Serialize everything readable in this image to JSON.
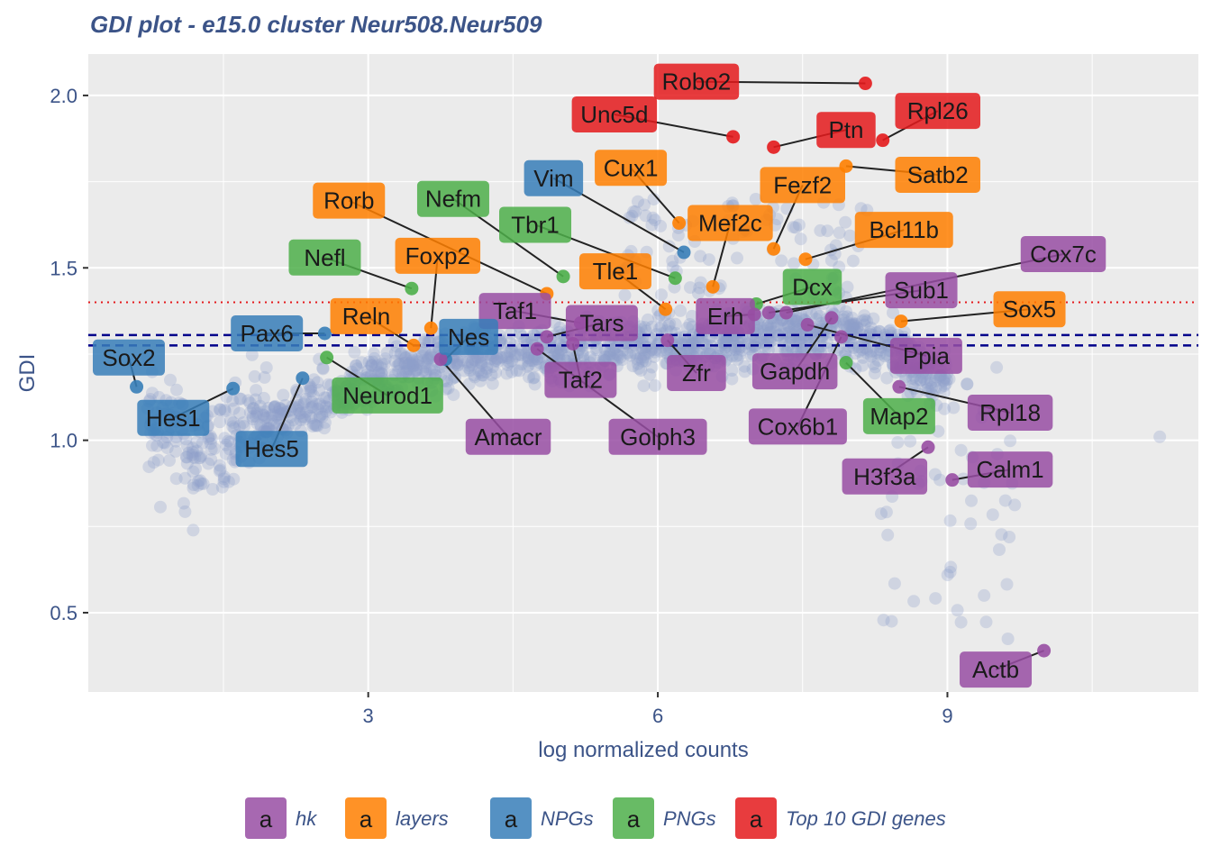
{
  "chart_data": {
    "type": "scatter",
    "title": "GDI plot - e15.0 cluster Neur508.Neur509",
    "xlabel": "log normalized counts",
    "ylabel": "GDI",
    "xlim": [
      0.1,
      11.6
    ],
    "ylim": [
      0.27,
      2.12
    ],
    "x_ticks": [
      3,
      6,
      9
    ],
    "y_ticks": [
      0.5,
      1.0,
      1.5,
      2.0
    ],
    "x_tick_labels": [
      "3",
      "6",
      "9"
    ],
    "y_tick_labels": [
      "0.5",
      "1.0",
      "1.5",
      "2.0"
    ],
    "grid": true,
    "legend_position": "bottom",
    "reference_lines": [
      {
        "y": 1.4,
        "style": "dotted",
        "color": "#e41a1c"
      },
      {
        "y": 1.305,
        "style": "dashed",
        "color": "#00008b"
      },
      {
        "y": 1.275,
        "style": "dashed",
        "color": "#00008b"
      }
    ],
    "legend": [
      {
        "key": "hk",
        "label": "hk",
        "color": "#984ea3"
      },
      {
        "key": "layers",
        "label": "layers",
        "color": "#ff7f00"
      },
      {
        "key": "NPGs",
        "label": "NPGs",
        "color": "#377eb8"
      },
      {
        "key": "PNGs",
        "label": "PNGs",
        "color": "#4daf4a"
      },
      {
        "key": "top10",
        "label": "Top 10 GDI genes",
        "color": "#e41a1c"
      }
    ],
    "legend_glyph": "a",
    "background_color": "#8da0cb",
    "labeled_points": [
      {
        "gene": "Robo2",
        "group": "top10",
        "x": 8.15,
        "y": 2.035,
        "lx": 6.4,
        "ly": 2.04
      },
      {
        "gene": "Unc5d",
        "group": "top10",
        "x": 6.78,
        "y": 1.88,
        "lx": 5.55,
        "ly": 1.945
      },
      {
        "gene": "Ptn",
        "group": "top10",
        "x": 7.2,
        "y": 1.85,
        "lx": 7.95,
        "ly": 1.9
      },
      {
        "gene": "Rpl26",
        "group": "top10",
        "x": 8.33,
        "y": 1.87,
        "lx": 8.9,
        "ly": 1.955
      },
      {
        "gene": "Satb2",
        "group": "layers",
        "x": 7.95,
        "y": 1.795,
        "lx": 8.9,
        "ly": 1.77
      },
      {
        "gene": "Cux1",
        "group": "layers",
        "x": 6.22,
        "y": 1.63,
        "lx": 5.72,
        "ly": 1.79
      },
      {
        "gene": "Fezf2",
        "group": "layers",
        "x": 7.2,
        "y": 1.555,
        "lx": 7.5,
        "ly": 1.74
      },
      {
        "gene": "Mef2c",
        "group": "layers",
        "x": 6.57,
        "y": 1.445,
        "lx": 6.75,
        "ly": 1.63
      },
      {
        "gene": "Bcl11b",
        "group": "layers",
        "x": 7.53,
        "y": 1.525,
        "lx": 8.55,
        "ly": 1.61
      },
      {
        "gene": "Vim",
        "group": "NPGs",
        "x": 6.27,
        "y": 1.545,
        "lx": 4.92,
        "ly": 1.76
      },
      {
        "gene": "Rorb",
        "group": "layers",
        "x": 4.85,
        "y": 1.425,
        "lx": 2.8,
        "ly": 1.695
      },
      {
        "gene": "Nefm",
        "group": "PNGs",
        "x": 5.02,
        "y": 1.475,
        "lx": 3.88,
        "ly": 1.7
      },
      {
        "gene": "Tbr1",
        "group": "PNGs",
        "x": 6.18,
        "y": 1.47,
        "lx": 4.73,
        "ly": 1.625
      },
      {
        "gene": "Nefl",
        "group": "PNGs",
        "x": 3.45,
        "y": 1.44,
        "lx": 2.55,
        "ly": 1.53
      },
      {
        "gene": "Foxp2",
        "group": "layers",
        "x": 3.65,
        "y": 1.325,
        "lx": 3.72,
        "ly": 1.535
      },
      {
        "gene": "Tle1",
        "group": "layers",
        "x": 6.08,
        "y": 1.38,
        "lx": 5.56,
        "ly": 1.49
      },
      {
        "gene": "Dcx",
        "group": "PNGs",
        "x": 7.02,
        "y": 1.395,
        "lx": 7.6,
        "ly": 1.445
      },
      {
        "gene": "Cox7c",
        "group": "hk",
        "x": 7.33,
        "y": 1.37,
        "lx": 10.2,
        "ly": 1.54
      },
      {
        "gene": "Sub1",
        "group": "hk",
        "x": 7.15,
        "y": 1.37,
        "lx": 8.73,
        "ly": 1.435
      },
      {
        "gene": "Sox5",
        "group": "layers",
        "x": 8.52,
        "y": 1.345,
        "lx": 9.85,
        "ly": 1.38
      },
      {
        "gene": "Taf1",
        "group": "hk",
        "x": 5.2,
        "y": 1.34,
        "lx": 4.52,
        "ly": 1.375
      },
      {
        "gene": "Reln",
        "group": "layers",
        "x": 3.47,
        "y": 1.275,
        "lx": 2.98,
        "ly": 1.36
      },
      {
        "gene": "Erh",
        "group": "hk",
        "x": 7.0,
        "y": 1.365,
        "lx": 6.7,
        "ly": 1.36
      },
      {
        "gene": "Tars",
        "group": "hk",
        "x": 4.85,
        "y": 1.3,
        "lx": 5.42,
        "ly": 1.34
      },
      {
        "gene": "Pax6",
        "group": "NPGs",
        "x": 2.55,
        "y": 1.31,
        "lx": 1.95,
        "ly": 1.31
      },
      {
        "gene": "Nes",
        "group": "NPGs",
        "x": 3.8,
        "y": 1.235,
        "lx": 4.04,
        "ly": 1.3
      },
      {
        "gene": "Sox2",
        "group": "NPGs",
        "x": 0.6,
        "y": 1.155,
        "lx": 0.52,
        "ly": 1.24
      },
      {
        "gene": "Neurod1",
        "group": "PNGs",
        "x": 2.57,
        "y": 1.24,
        "lx": 3.2,
        "ly": 1.13
      },
      {
        "gene": "Ppia",
        "group": "hk",
        "x": 7.55,
        "y": 1.335,
        "lx": 8.78,
        "ly": 1.245
      },
      {
        "gene": "Gapdh",
        "group": "hk",
        "x": 7.8,
        "y": 1.355,
        "lx": 7.42,
        "ly": 1.2
      },
      {
        "gene": "Zfr",
        "group": "hk",
        "x": 6.1,
        "y": 1.29,
        "lx": 6.4,
        "ly": 1.195
      },
      {
        "gene": "Taf2",
        "group": "hk",
        "x": 5.12,
        "y": 1.28,
        "lx": 5.2,
        "ly": 1.175
      },
      {
        "gene": "Hes1",
        "group": "NPGs",
        "x": 1.6,
        "y": 1.15,
        "lx": 0.98,
        "ly": 1.065
      },
      {
        "gene": "Rpl18",
        "group": "hk",
        "x": 8.5,
        "y": 1.155,
        "lx": 9.65,
        "ly": 1.08
      },
      {
        "gene": "Map2",
        "group": "PNGs",
        "x": 7.95,
        "y": 1.225,
        "lx": 8.5,
        "ly": 1.07
      },
      {
        "gene": "Amacr",
        "group": "hk",
        "x": 3.75,
        "y": 1.235,
        "lx": 4.45,
        "ly": 1.01
      },
      {
        "gene": "Golph3",
        "group": "hk",
        "x": 4.75,
        "y": 1.265,
        "lx": 6.0,
        "ly": 1.01
      },
      {
        "gene": "Cox6b1",
        "group": "hk",
        "x": 7.9,
        "y": 1.3,
        "lx": 7.45,
        "ly": 1.04
      },
      {
        "gene": "Hes5",
        "group": "NPGs",
        "x": 2.32,
        "y": 1.18,
        "lx": 2.0,
        "ly": 0.975
      },
      {
        "gene": "H3f3a",
        "group": "hk",
        "x": 8.8,
        "y": 0.98,
        "lx": 8.35,
        "ly": 0.895
      },
      {
        "gene": "Calm1",
        "group": "hk",
        "x": 9.05,
        "y": 0.885,
        "lx": 9.65,
        "ly": 0.915
      },
      {
        "gene": "Actb",
        "group": "hk",
        "x": 10.0,
        "y": 0.39,
        "lx": 9.5,
        "ly": 0.335
      }
    ]
  }
}
